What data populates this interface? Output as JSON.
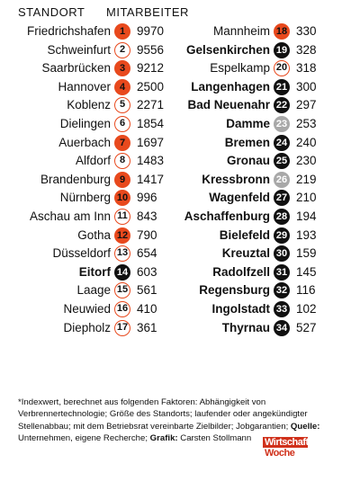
{
  "header": {
    "location": "STANDORT",
    "employees": "MITARBEITER"
  },
  "rows": [
    {
      "name": "Friedrichshafen",
      "rank": "1",
      "employees": "9970",
      "style": "filled",
      "bold": false
    },
    {
      "name": "Schweinfurt",
      "rank": "2",
      "employees": "9556",
      "style": "outline",
      "bold": false
    },
    {
      "name": "Saarbrücken",
      "rank": "3",
      "employees": "9212",
      "style": "filled",
      "bold": false
    },
    {
      "name": "Hannover",
      "rank": "4",
      "employees": "2500",
      "style": "filled",
      "bold": false
    },
    {
      "name": "Koblenz",
      "rank": "5",
      "employees": "2271",
      "style": "outline",
      "bold": false
    },
    {
      "name": "Dielingen",
      "rank": "6",
      "employees": "1854",
      "style": "outline",
      "bold": false
    },
    {
      "name": "Auerbach",
      "rank": "7",
      "employees": "1697",
      "style": "filled",
      "bold": false
    },
    {
      "name": "Alfdorf",
      "rank": "8",
      "employees": "1483",
      "style": "outline",
      "bold": false
    },
    {
      "name": "Brandenburg",
      "rank": "9",
      "employees": "1417",
      "style": "filled",
      "bold": false
    },
    {
      "name": "Nürnberg",
      "rank": "10",
      "employees": "996",
      "style": "filled",
      "bold": false
    },
    {
      "name": "Aschau am Inn",
      "rank": "11",
      "employees": "843",
      "style": "outline",
      "bold": false
    },
    {
      "name": "Gotha",
      "rank": "12",
      "employees": "790",
      "style": "filled",
      "bold": false
    },
    {
      "name": "Düsseldorf",
      "rank": "13",
      "employees": "654",
      "style": "outline",
      "bold": false
    },
    {
      "name": "Eitorf",
      "rank": "14",
      "employees": "603",
      "style": "black",
      "bold": true
    },
    {
      "name": "Laage",
      "rank": "15",
      "employees": "561",
      "style": "outline",
      "bold": false
    },
    {
      "name": "Neuwied",
      "rank": "16",
      "employees": "410",
      "style": "outline",
      "bold": false
    },
    {
      "name": "Diepholz",
      "rank": "17",
      "employees": "361",
      "style": "outline",
      "bold": false
    },
    {
      "name": "Mannheim",
      "rank": "18",
      "employees": "330",
      "style": "filled",
      "bold": false
    },
    {
      "name": "Gelsenkirchen",
      "rank": "19",
      "employees": "328",
      "style": "black",
      "bold": true
    },
    {
      "name": "Espelkamp",
      "rank": "20",
      "employees": "318",
      "style": "outline",
      "bold": false
    },
    {
      "name": "Langenhagen",
      "rank": "21",
      "employees": "300",
      "style": "black",
      "bold": true
    },
    {
      "name": "Bad Neuenahr",
      "rank": "22",
      "employees": "297",
      "style": "black",
      "bold": true
    },
    {
      "name": "Damme",
      "rank": "23",
      "employees": "253",
      "style": "grey",
      "bold": true
    },
    {
      "name": "Bremen",
      "rank": "24",
      "employees": "240",
      "style": "black",
      "bold": true
    },
    {
      "name": "Gronau",
      "rank": "25",
      "employees": "230",
      "style": "black",
      "bold": true
    },
    {
      "name": "Kressbronn",
      "rank": "26",
      "employees": "219",
      "style": "grey",
      "bold": true
    },
    {
      "name": "Wagenfeld",
      "rank": "27",
      "employees": "210",
      "style": "black",
      "bold": true
    },
    {
      "name": "Aschaffenburg",
      "rank": "28",
      "employees": "194",
      "style": "black",
      "bold": true
    },
    {
      "name": "Bielefeld",
      "rank": "29",
      "employees": "193",
      "style": "black",
      "bold": true
    },
    {
      "name": "Kreuztal",
      "rank": "30",
      "employees": "159",
      "style": "black",
      "bold": true
    },
    {
      "name": "Radolfzell",
      "rank": "31",
      "employees": "145",
      "style": "black",
      "bold": true
    },
    {
      "name": "Regensburg",
      "rank": "32",
      "employees": "116",
      "style": "black",
      "bold": true
    },
    {
      "name": "Ingolstadt",
      "rank": "33",
      "employees": "102",
      "style": "black",
      "bold": true
    },
    {
      "name": "Thyrnau",
      "rank": "34",
      "employees": "527",
      "style": "black",
      "bold": true
    }
  ],
  "footnote": {
    "text": "*Indexwert, berechnet aus folgenden Faktoren: Abhängigkeit von Verbrennertechnologie; Größe des Standorts; laufender oder angekündigter Stellenabbau; mit dem Betriebsrat vereinbarte Zielbilder; Jobgarantien;",
    "source_label": "Quelle:",
    "source": "Unternehmen, eigene Recherche;",
    "graphic_label": "Grafik:",
    "graphic": "Carsten Stollmann"
  },
  "logo": {
    "line1": "Wirtschafts",
    "line2": "Woche"
  }
}
